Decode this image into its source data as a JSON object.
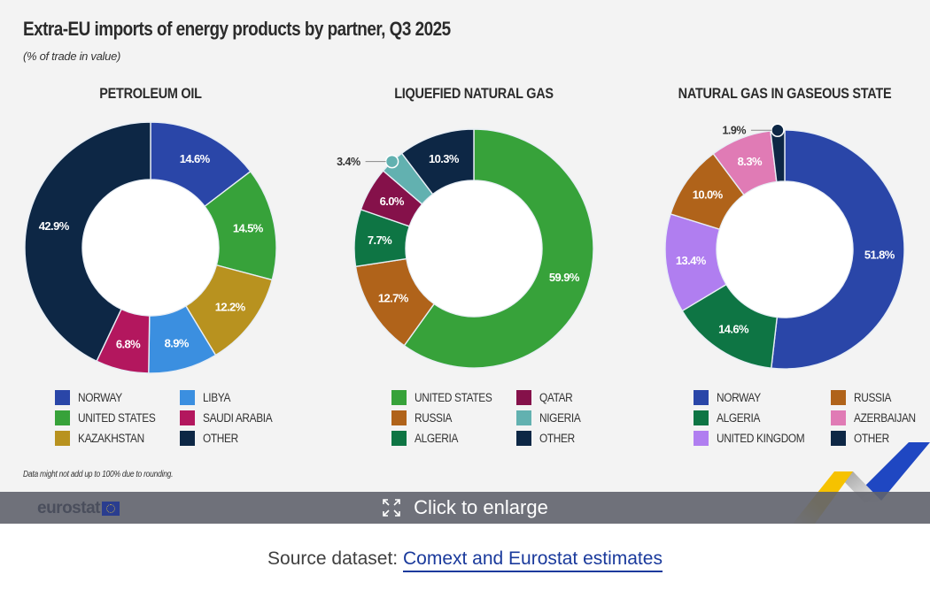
{
  "figure": {
    "title": "Extra-EU imports of energy products by partner, Q3 2025",
    "subtitle": "(% of trade in value)",
    "footnote": "Data might not add up to 100% due to rounding.",
    "brand": "eurostat"
  },
  "overlay": {
    "icon": "expand-icon",
    "label": "Click to enlarge"
  },
  "source": {
    "prefix": "Source dataset: ",
    "link_text": "Comext and Eurostat estimates"
  },
  "chart_data": [
    {
      "type": "pie",
      "variant": "donut",
      "title": "PETROLEUM OIL",
      "unit": "%",
      "start": "top",
      "direction": "clockwise",
      "slices": [
        {
          "label": "NORWAY",
          "value": 14.6,
          "display": "14.6%",
          "color": "#2a46a8"
        },
        {
          "label": "UNITED STATES",
          "value": 14.5,
          "display": "14.5%",
          "color": "#37a23a"
        },
        {
          "label": "KAZAKHSTAN",
          "value": 12.2,
          "display": "12.2%",
          "color": "#b8921f"
        },
        {
          "label": "LIBYA",
          "value": 8.9,
          "display": "8.9%",
          "color": "#3b8fe0"
        },
        {
          "label": "SAUDI ARABIA",
          "value": 6.8,
          "display": "6.8%",
          "color": "#b3175e"
        },
        {
          "label": "OTHER",
          "value": 42.9,
          "display": "42.9%",
          "color": "#0d2745"
        }
      ],
      "legend": [
        [
          "NORWAY",
          "UNITED STATES",
          "KAZAKHSTAN"
        ],
        [
          "LIBYA",
          "SAUDI ARABIA",
          "OTHER"
        ]
      ]
    },
    {
      "type": "pie",
      "variant": "donut",
      "title": "LIQUEFIED NATURAL GAS",
      "unit": "%",
      "start": "top",
      "direction": "clockwise",
      "slices": [
        {
          "label": "UNITED STATES",
          "value": 59.9,
          "display": "59.9%",
          "color": "#37a23a"
        },
        {
          "label": "RUSSIA",
          "value": 12.7,
          "display": "12.7%",
          "color": "#b0631a"
        },
        {
          "label": "ALGERIA",
          "value": 7.7,
          "display": "7.7%",
          "color": "#0e7544"
        },
        {
          "label": "QATAR",
          "value": 6.0,
          "display": "6.0%",
          "color": "#85114a"
        },
        {
          "label": "NIGERIA",
          "value": 3.4,
          "display": "3.4%",
          "color": "#62b1b0",
          "callout": true
        },
        {
          "label": "OTHER",
          "value": 10.3,
          "display": "10.3%",
          "color": "#0d2745"
        }
      ],
      "legend": [
        [
          "UNITED STATES",
          "RUSSIA",
          "ALGERIA"
        ],
        [
          "QATAR",
          "NIGERIA",
          "OTHER"
        ]
      ]
    },
    {
      "type": "pie",
      "variant": "donut",
      "title": "NATURAL GAS IN GASEOUS STATE",
      "unit": "%",
      "start": "top",
      "direction": "clockwise",
      "slices": [
        {
          "label": "NORWAY",
          "value": 51.8,
          "display": "51.8%",
          "color": "#2a46a8"
        },
        {
          "label": "ALGERIA",
          "value": 14.6,
          "display": "14.6%",
          "color": "#0e7544"
        },
        {
          "label": "UNITED KINGDOM",
          "value": 13.4,
          "display": "13.4%",
          "color": "#b07ef0"
        },
        {
          "label": "RUSSIA",
          "value": 10.0,
          "display": "10.0%",
          "color": "#b0631a"
        },
        {
          "label": "AZERBAIJAN",
          "value": 8.3,
          "display": "8.3%",
          "color": "#e07bb5"
        },
        {
          "label": "OTHER",
          "value": 1.9,
          "display": "1.9%",
          "color": "#0d2745",
          "callout": true
        }
      ],
      "legend": [
        [
          "NORWAY",
          "ALGERIA",
          "UNITED KINGDOM"
        ],
        [
          "RUSSIA",
          "AZERBAIJAN",
          "OTHER"
        ]
      ]
    }
  ]
}
